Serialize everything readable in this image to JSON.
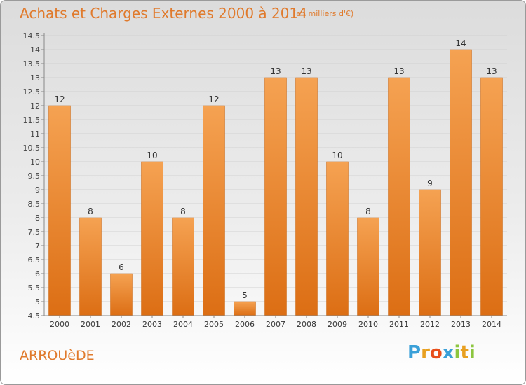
{
  "header": {
    "title": "Achats et Charges Externes 2000 à 2014",
    "subtitle": "(en milliers d'€)"
  },
  "footer": {
    "place": "ARROUèDE",
    "logo_letters": [
      "P",
      "r",
      "o",
      "x",
      "i",
      "t",
      "i"
    ],
    "logo_colors": [
      "#3aa0d8",
      "#e8a020",
      "#e84e1b",
      "#3aa0d8",
      "#8cc63f",
      "#e8a020",
      "#8cc63f"
    ]
  },
  "chart_data": {
    "type": "bar",
    "categories": [
      "2000",
      "2001",
      "2002",
      "2003",
      "2004",
      "2005",
      "2006",
      "2007",
      "2008",
      "2009",
      "2010",
      "2011",
      "2012",
      "2013",
      "2014"
    ],
    "values": [
      12,
      8,
      6,
      10,
      8,
      12,
      5,
      13,
      13,
      10,
      8,
      13,
      9,
      14,
      13
    ],
    "data_labels": [
      "12",
      "8",
      "6",
      "10",
      "8",
      "12",
      "5",
      "13",
      "13",
      "10",
      "8",
      "13",
      "9",
      "14",
      "13"
    ],
    "yticks": [
      4.5,
      5,
      5.5,
      6,
      6.5,
      7,
      7.5,
      8,
      8.5,
      9,
      9.5,
      10,
      10.5,
      11,
      11.5,
      12,
      12.5,
      13,
      13.5,
      14,
      14.5
    ],
    "ytick_labels": [
      "4.5",
      "5",
      "5.5",
      "6",
      "6.5",
      "7",
      "7.5",
      "8",
      "8.5",
      "9",
      "9.5",
      "10",
      "10.5",
      "11",
      "11.5",
      "12",
      "12.5",
      "13",
      "13.5",
      "14",
      "14.5"
    ],
    "ylim": [
      4.5,
      14.5
    ],
    "grid": true,
    "bar_color": "#f0943a",
    "xlabel": "",
    "ylabel": ""
  }
}
